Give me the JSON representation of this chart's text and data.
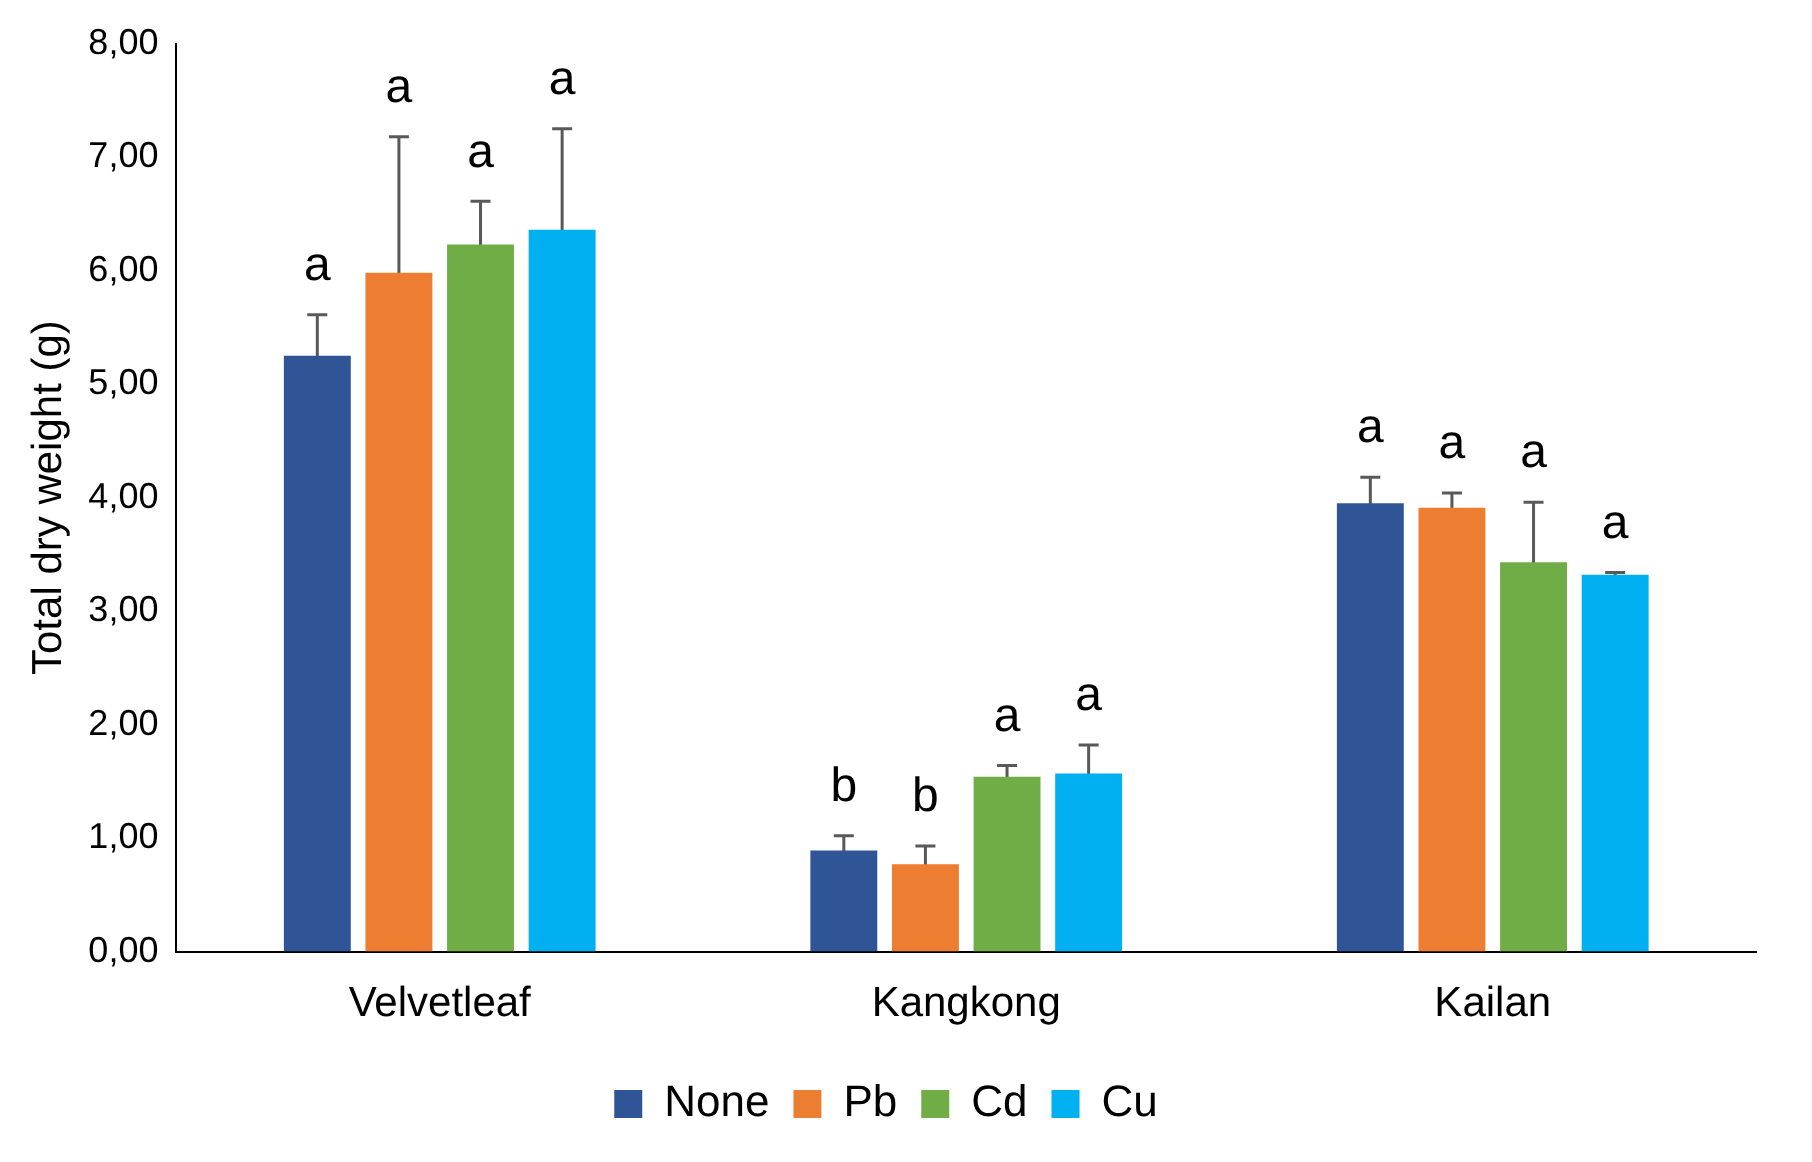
{
  "chart_data": {
    "type": "bar",
    "ylabel": "Total dry weight (g)",
    "categories": [
      "Velvetleaf",
      "Kangkong",
      "Kailan"
    ],
    "series": [
      {
        "name": "None",
        "color": "#2f5597",
        "values": [
          5.25,
          0.89,
          3.95
        ],
        "errors": [
          0.36,
          0.13,
          0.23
        ]
      },
      {
        "name": "Pb",
        "color": "#ed7d31",
        "values": [
          5.98,
          0.77,
          3.91
        ],
        "errors": [
          1.2,
          0.16,
          0.13
        ]
      },
      {
        "name": "Cd",
        "color": "#70ad47",
        "values": [
          6.23,
          1.54,
          3.43
        ],
        "errors": [
          0.38,
          0.1,
          0.53
        ]
      },
      {
        "name": "Cu",
        "color": "#00b0f0",
        "values": [
          6.36,
          1.57,
          3.32
        ],
        "errors": [
          0.89,
          0.25,
          0.02
        ]
      }
    ],
    "ylim": [
      0,
      8
    ],
    "yticks": [
      {
        "value": 0,
        "label": "0,00"
      },
      {
        "value": 1,
        "label": "1,00"
      },
      {
        "value": 2,
        "label": "2,00"
      },
      {
        "value": 3,
        "label": "3,00"
      },
      {
        "value": 4,
        "label": "4,00"
      },
      {
        "value": 5,
        "label": "5,00"
      },
      {
        "value": 6,
        "label": "6,00"
      },
      {
        "value": 7,
        "label": "7,00"
      },
      {
        "value": 8,
        "label": "8,00"
      }
    ],
    "annotations": [
      "a",
      "a",
      "a",
      "a",
      "b",
      "b",
      "a",
      "a",
      "a",
      "a",
      "a",
      "a"
    ],
    "grid": false,
    "legend": "bottom"
  }
}
